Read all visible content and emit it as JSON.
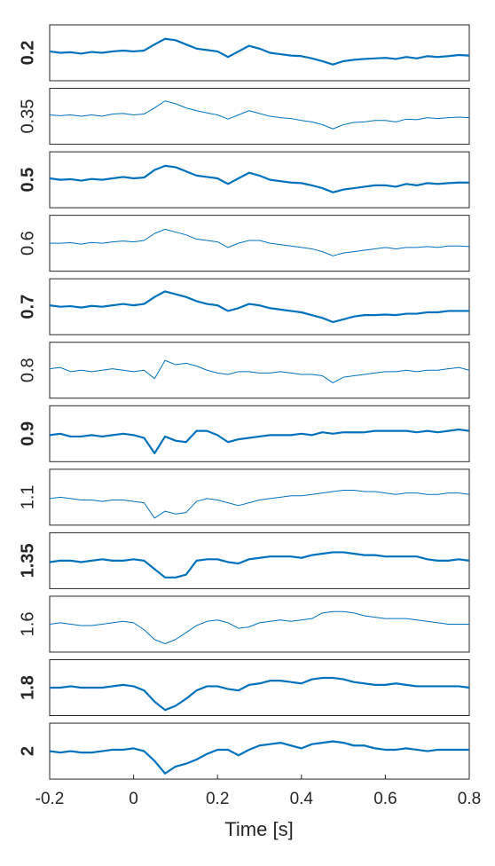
{
  "chart_data": {
    "type": "line",
    "xlabel": "Time [s]",
    "color": "#0072bd",
    "xlim": [
      -0.2,
      0.8
    ],
    "xticks": [
      -0.2,
      0,
      0.2,
      0.4,
      0.6,
      0.8
    ],
    "ylim": [
      -1,
      1
    ],
    "grid": false,
    "x": [
      -0.2,
      -0.175,
      -0.15,
      -0.125,
      -0.1,
      -0.075,
      -0.05,
      -0.025,
      0,
      0.025,
      0.05,
      0.075,
      0.1,
      0.125,
      0.15,
      0.175,
      0.2,
      0.225,
      0.25,
      0.275,
      0.3,
      0.325,
      0.35,
      0.375,
      0.4,
      0.425,
      0.45,
      0.475,
      0.5,
      0.525,
      0.55,
      0.575,
      0.6,
      0.625,
      0.65,
      0.675,
      0.7,
      0.725,
      0.75,
      0.775,
      0.8
    ],
    "series": [
      {
        "name": "0.2",
        "bold": true,
        "values": [
          0.05,
          0.0,
          0.02,
          -0.03,
          0.03,
          0.0,
          0.05,
          0.08,
          0.05,
          0.08,
          0.3,
          0.5,
          0.45,
          0.3,
          0.15,
          0.1,
          0.05,
          -0.15,
          0.05,
          0.25,
          0.15,
          0.0,
          -0.05,
          -0.1,
          -0.12,
          -0.2,
          -0.3,
          -0.42,
          -0.3,
          -0.25,
          -0.22,
          -0.2,
          -0.18,
          -0.22,
          -0.15,
          -0.2,
          -0.12,
          -0.15,
          -0.12,
          -0.08,
          -0.1
        ]
      },
      {
        "name": "0.35",
        "bold": false,
        "values": [
          0.05,
          0.02,
          0.05,
          0.0,
          0.05,
          0.0,
          0.08,
          0.1,
          0.05,
          0.08,
          0.3,
          0.55,
          0.45,
          0.3,
          0.2,
          0.12,
          0.05,
          -0.1,
          0.05,
          0.2,
          0.1,
          0.0,
          -0.05,
          -0.08,
          -0.15,
          -0.2,
          -0.3,
          -0.45,
          -0.3,
          -0.22,
          -0.2,
          -0.15,
          -0.15,
          -0.2,
          -0.1,
          -0.12,
          -0.05,
          -0.08,
          -0.05,
          -0.03,
          -0.05
        ]
      },
      {
        "name": "0.5",
        "bold": true,
        "values": [
          0.05,
          0.0,
          0.02,
          -0.03,
          0.03,
          0.0,
          0.05,
          0.1,
          0.05,
          0.08,
          0.35,
          0.5,
          0.45,
          0.3,
          0.15,
          0.1,
          0.05,
          -0.15,
          0.05,
          0.25,
          0.15,
          0.0,
          -0.05,
          -0.1,
          -0.12,
          -0.2,
          -0.3,
          -0.45,
          -0.35,
          -0.3,
          -0.25,
          -0.2,
          -0.2,
          -0.25,
          -0.15,
          -0.2,
          -0.12,
          -0.15,
          -0.12,
          -0.1,
          -0.1
        ]
      },
      {
        "name": "0.6",
        "bold": false,
        "values": [
          0.0,
          0.0,
          0.02,
          -0.03,
          0.03,
          0.0,
          0.05,
          0.08,
          0.05,
          0.1,
          0.35,
          0.5,
          0.4,
          0.3,
          0.15,
          0.1,
          0.05,
          -0.15,
          0.0,
          0.1,
          0.1,
          0.0,
          -0.05,
          -0.1,
          -0.15,
          -0.2,
          -0.3,
          -0.45,
          -0.35,
          -0.3,
          -0.25,
          -0.2,
          -0.15,
          -0.2,
          -0.15,
          -0.15,
          -0.12,
          -0.15,
          -0.1,
          -0.1,
          -0.12
        ]
      },
      {
        "name": "0.7",
        "bold": true,
        "values": [
          0.05,
          0.0,
          0.02,
          -0.03,
          0.03,
          0.0,
          0.05,
          0.1,
          0.05,
          0.1,
          0.35,
          0.55,
          0.45,
          0.35,
          0.2,
          0.1,
          0.05,
          -0.15,
          -0.05,
          0.1,
          0.05,
          -0.05,
          -0.1,
          -0.15,
          -0.2,
          -0.3,
          -0.4,
          -0.55,
          -0.45,
          -0.35,
          -0.3,
          -0.3,
          -0.28,
          -0.3,
          -0.25,
          -0.25,
          -0.2,
          -0.2,
          -0.15,
          -0.15,
          -0.15
        ]
      },
      {
        "name": "0.8",
        "bold": false,
        "values": [
          0.05,
          0.1,
          -0.05,
          0.0,
          -0.05,
          0.0,
          0.05,
          0.0,
          -0.05,
          0.0,
          -0.3,
          0.35,
          0.2,
          0.25,
          0.15,
          0.0,
          -0.1,
          -0.15,
          -0.05,
          -0.05,
          -0.1,
          -0.1,
          -0.05,
          -0.1,
          -0.15,
          -0.15,
          -0.2,
          -0.45,
          -0.25,
          -0.2,
          -0.15,
          -0.1,
          -0.05,
          -0.05,
          0.0,
          -0.05,
          0.0,
          0.0,
          0.05,
          0.1,
          0.0
        ]
      },
      {
        "name": "0.9",
        "bold": true,
        "values": [
          -0.05,
          0.0,
          -0.1,
          -0.1,
          -0.05,
          -0.1,
          -0.05,
          0.0,
          -0.05,
          -0.15,
          -0.7,
          -0.1,
          -0.25,
          -0.3,
          0.1,
          0.1,
          -0.05,
          -0.3,
          -0.2,
          -0.15,
          -0.1,
          -0.05,
          -0.05,
          -0.05,
          0.0,
          -0.05,
          0.05,
          0.0,
          0.05,
          0.05,
          0.05,
          0.1,
          0.1,
          0.1,
          0.1,
          0.05,
          0.1,
          0.05,
          0.1,
          0.15,
          0.1
        ]
      },
      {
        "name": "1.1",
        "bold": false,
        "values": [
          -0.05,
          0.0,
          -0.05,
          -0.1,
          -0.1,
          -0.15,
          -0.1,
          -0.1,
          -0.15,
          -0.2,
          -0.75,
          -0.5,
          -0.6,
          -0.55,
          -0.15,
          -0.05,
          -0.1,
          -0.2,
          -0.3,
          -0.2,
          -0.1,
          -0.05,
          0.0,
          0.05,
          0.05,
          0.1,
          0.15,
          0.2,
          0.25,
          0.25,
          0.2,
          0.2,
          0.15,
          0.1,
          0.15,
          0.15,
          0.1,
          0.1,
          0.15,
          0.15,
          0.1
        ]
      },
      {
        "name": "1.35",
        "bold": true,
        "values": [
          -0.05,
          0.0,
          0.0,
          -0.05,
          0.0,
          0.05,
          0.0,
          0.0,
          0.05,
          0.0,
          -0.3,
          -0.6,
          -0.6,
          -0.5,
          0.0,
          0.05,
          0.05,
          -0.05,
          -0.1,
          0.05,
          0.1,
          0.15,
          0.15,
          0.15,
          0.1,
          0.2,
          0.25,
          0.3,
          0.3,
          0.25,
          0.2,
          0.2,
          0.15,
          0.15,
          0.15,
          0.15,
          0.05,
          0.0,
          0.0,
          0.05,
          0.0
        ]
      },
      {
        "name": "1.6",
        "bold": false,
        "values": [
          0.0,
          0.05,
          0.0,
          -0.05,
          -0.05,
          0.0,
          0.05,
          0.1,
          0.05,
          -0.2,
          -0.55,
          -0.7,
          -0.55,
          -0.3,
          -0.05,
          0.1,
          0.15,
          0.05,
          -0.15,
          -0.1,
          0.05,
          0.1,
          0.15,
          0.1,
          0.15,
          0.2,
          0.4,
          0.45,
          0.45,
          0.4,
          0.3,
          0.25,
          0.2,
          0.2,
          0.2,
          0.15,
          0.1,
          0.05,
          0.0,
          0.0,
          0.0
        ]
      },
      {
        "name": "1.8",
        "bold": true,
        "values": [
          0.0,
          0.0,
          0.05,
          0.0,
          0.0,
          0.0,
          0.05,
          0.1,
          0.05,
          -0.1,
          -0.5,
          -0.8,
          -0.65,
          -0.4,
          -0.1,
          0.05,
          0.05,
          -0.05,
          -0.1,
          0.1,
          0.15,
          0.25,
          0.25,
          0.2,
          0.15,
          0.3,
          0.35,
          0.35,
          0.3,
          0.2,
          0.15,
          0.1,
          0.1,
          0.15,
          0.1,
          0.05,
          0.05,
          0.05,
          0.05,
          0.05,
          0.0
        ]
      },
      {
        "name": "2",
        "bold": true,
        "values": [
          0.0,
          -0.05,
          0.0,
          -0.05,
          -0.05,
          0.0,
          0.05,
          0.05,
          0.1,
          0.0,
          -0.35,
          -0.8,
          -0.55,
          -0.45,
          -0.3,
          -0.1,
          0.05,
          0.05,
          -0.15,
          0.05,
          0.2,
          0.25,
          0.3,
          0.2,
          0.1,
          0.25,
          0.3,
          0.35,
          0.3,
          0.2,
          0.2,
          0.1,
          0.05,
          0.05,
          0.1,
          0.05,
          0.0,
          0.05,
          0.05,
          0.05,
          0.05
        ]
      }
    ]
  }
}
